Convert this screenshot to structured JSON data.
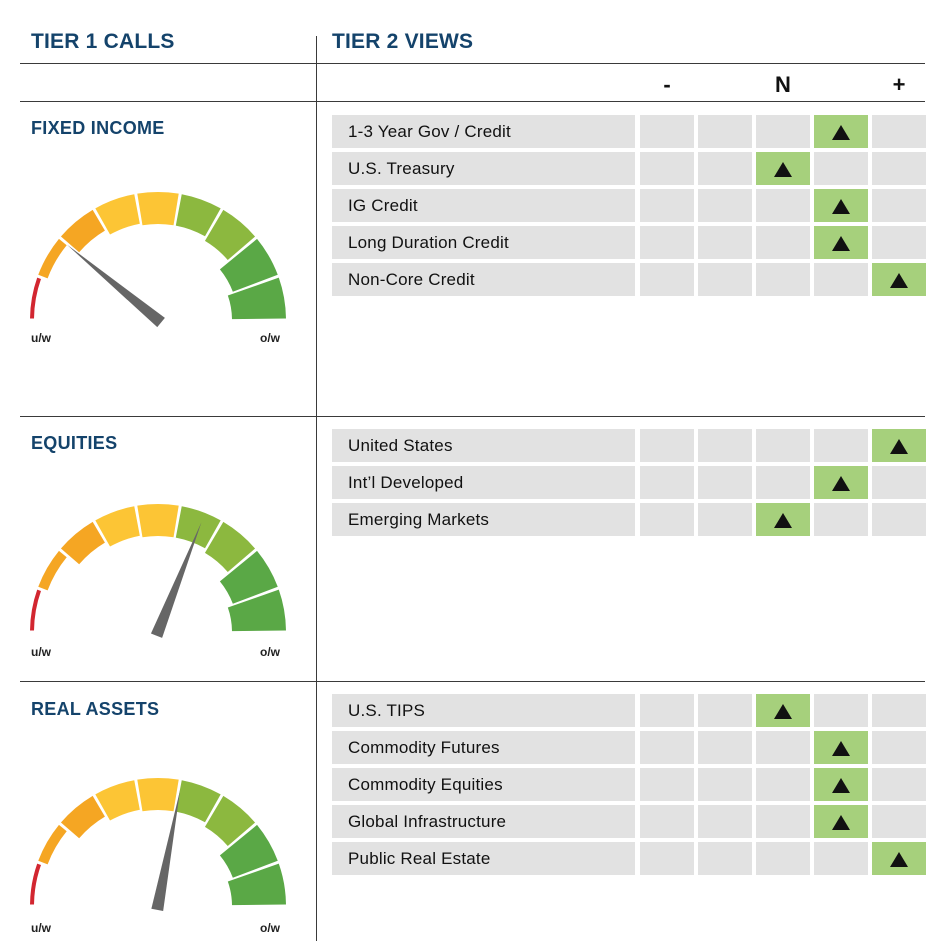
{
  "headers": {
    "tier1": "TIER 1 CALLS",
    "tier2": "TIER 2 VIEWS"
  },
  "scale": {
    "minus": "-",
    "neutral": "N",
    "plus": "+"
  },
  "gauge_labels": {
    "underweight": "u/w",
    "overweight": "o/w"
  },
  "colors": {
    "title": "#14436b",
    "cell": "#e2e2e2",
    "cell_active": "#a6d07c",
    "gauge": [
      "#d22630",
      "#f5a623",
      "#fcc535",
      "#8cb83f",
      "#5aa846"
    ]
  },
  "chart_data": [
    {
      "type": "table",
      "section": "FIXED INCOME",
      "gauge_value": 0.22,
      "rows": [
        {
          "label": "1-3 Year Gov / Credit",
          "position": 3
        },
        {
          "label": "U.S. Treasury",
          "position": 2
        },
        {
          "label": "IG Credit",
          "position": 3
        },
        {
          "label": "Long Duration Credit",
          "position": 3
        },
        {
          "label": "Non-Core Credit",
          "position": 4
        }
      ]
    },
    {
      "type": "table",
      "section": "EQUITIES",
      "gauge_value": 0.62,
      "rows": [
        {
          "label": "United States",
          "position": 4
        },
        {
          "label": "Int’l Developed",
          "position": 3
        },
        {
          "label": "Emerging Markets",
          "position": 2
        }
      ]
    },
    {
      "type": "table",
      "section": "REAL ASSETS",
      "gauge_value": 0.56,
      "rows": [
        {
          "label": "U.S. TIPS",
          "position": 2
        },
        {
          "label": "Commodity Futures",
          "position": 3
        },
        {
          "label": "Commodity Equities",
          "position": 3
        },
        {
          "label": "Global Infrastructure",
          "position": 3
        },
        {
          "label": "Public Real Estate",
          "position": 4
        }
      ]
    }
  ]
}
